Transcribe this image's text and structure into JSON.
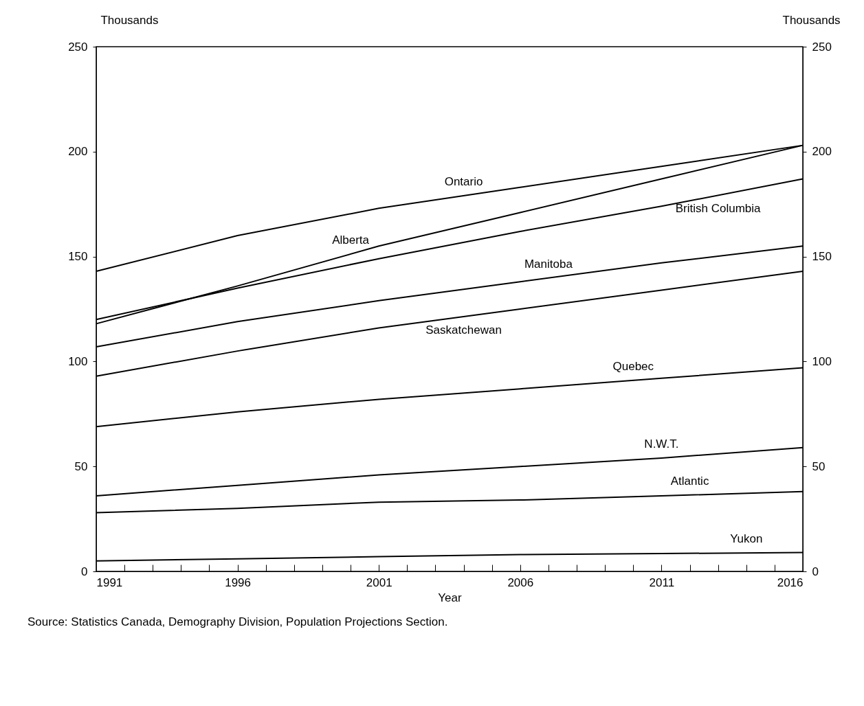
{
  "chart_data": {
    "type": "line",
    "xlabel": "Year",
    "ylabel": "Thousands",
    "y2label": "Thousands",
    "x": [
      1991,
      1996,
      2001,
      2006,
      2011,
      2016
    ],
    "series": [
      {
        "name": "Ontario",
        "color": "#000000",
        "values": [
          143,
          160,
          173,
          183,
          193,
          203
        ]
      },
      {
        "name": "Alberta",
        "color": "#000000",
        "values": [
          118,
          136,
          155,
          171,
          187,
          203
        ]
      },
      {
        "name": "British Columbia",
        "color": "#000000",
        "values": [
          120,
          135,
          149,
          162,
          174,
          187
        ]
      },
      {
        "name": "Manitoba",
        "color": "#000000",
        "values": [
          107,
          119,
          129,
          138,
          147,
          155
        ]
      },
      {
        "name": "Saskatchewan",
        "color": "#000000",
        "values": [
          93,
          105,
          116,
          125,
          134,
          143
        ]
      },
      {
        "name": "Quebec",
        "color": "#000000",
        "values": [
          69,
          76,
          82,
          87,
          92,
          97
        ]
      },
      {
        "name": "N.W.T.",
        "color": "#000000",
        "values": [
          36,
          41,
          46,
          50,
          54,
          59
        ]
      },
      {
        "name": "Atlantic",
        "color": "#000000",
        "values": [
          28,
          30,
          33,
          34,
          36,
          38
        ]
      },
      {
        "name": "Yukon",
        "color": "#000000",
        "values": [
          5,
          6,
          7,
          8,
          8.5,
          9
        ]
      }
    ],
    "xlim": [
      1991,
      2016
    ],
    "xticks": [
      1991,
      {
        "value": 1992,
        "label": null
      },
      {
        "value": 1993,
        "label": null
      },
      {
        "value": 1994,
        "label": null
      },
      {
        "value": 1995,
        "label": null
      },
      1996,
      {
        "value": 1997,
        "label": null
      },
      {
        "value": 1998,
        "label": null
      },
      {
        "value": 1999,
        "label": null
      },
      {
        "value": 2000,
        "label": null
      },
      2001,
      {
        "value": 2002,
        "label": null
      },
      {
        "value": 2003,
        "label": null
      },
      {
        "value": 2004,
        "label": null
      },
      {
        "value": 2005,
        "label": null
      },
      2006,
      {
        "value": 2007,
        "label": null
      },
      {
        "value": 2008,
        "label": null
      },
      {
        "value": 2009,
        "label": null
      },
      {
        "value": 2010,
        "label": null
      },
      2011,
      {
        "value": 2012,
        "label": null
      },
      {
        "value": 2013,
        "label": null
      },
      {
        "value": 2014,
        "label": null
      },
      {
        "value": 2015,
        "label": null
      },
      2016
    ],
    "ylim": [
      0,
      250
    ],
    "yticks": [
      0,
      50,
      100,
      150,
      200,
      250
    ],
    "y2lim": [
      0,
      250
    ],
    "y2ticks": [
      0,
      50,
      100,
      150,
      200,
      250
    ],
    "grid": false,
    "marker": "none",
    "line_style": "solid",
    "annotations": [
      "Source: Statistics Canada, Demography Division, Population Projections Section."
    ]
  }
}
